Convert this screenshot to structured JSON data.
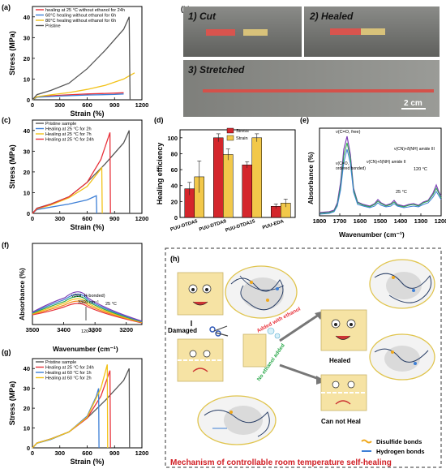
{
  "panels": {
    "a": {
      "tag": "(a)"
    },
    "b": {
      "tag": "(b)",
      "photo1": "1) Cut",
      "photo2": "2) Healed",
      "photo3": "3) Stretched",
      "scale": "2 cm"
    },
    "c": {
      "tag": "(c)"
    },
    "d": {
      "tag": "(d)"
    },
    "e": {
      "tag": "(e)"
    },
    "f": {
      "tag": "(f)"
    },
    "g": {
      "tag": "(g)"
    },
    "h": {
      "tag": "(h)",
      "damaged": "Damaged",
      "added_ethanol": "Added with ethanol",
      "no_ethanol": "No ethanol added",
      "healed": "Healed",
      "can_not_heal": "Can not Heal",
      "legend_disulfide": "Disulfide bonds",
      "legend_hbond": "Hydrogen bonds",
      "title": "Mechanism of controllable room temperature self-healing"
    }
  },
  "colors": {
    "red": "#e8313a",
    "blue": "#3d7fd6",
    "yellow": "#f2c218",
    "gray": "#555555",
    "purple": "#7b3fb5",
    "green": "#2aa84a"
  },
  "chart_data": [
    {
      "id": "a",
      "type": "line",
      "xlabel": "Strain (%)",
      "ylabel": "Stress (MPa)",
      "xlim": [
        0,
        1200
      ],
      "ylim": [
        0,
        45
      ],
      "xticks": [
        0,
        300,
        600,
        900,
        1200
      ],
      "yticks": [
        0,
        10,
        20,
        30,
        40
      ],
      "series": [
        {
          "name": "healing at 25 °C without ethanol for 24h",
          "color": "#e8313a",
          "x": [
            0,
            50,
            300,
            600,
            900,
            1000
          ],
          "y": [
            0,
            1.5,
            2.2,
            2.8,
            3.2,
            3.4
          ]
        },
        {
          "name": "60°C healing without ethanol for 6h",
          "color": "#3d7fd6",
          "x": [
            0,
            50,
            300,
            600,
            900,
            1000
          ],
          "y": [
            0,
            1.2,
            1.8,
            2.3,
            2.6,
            2.8
          ]
        },
        {
          "name": "80°C healing without ethanol for 6h",
          "color": "#f2c218",
          "x": [
            0,
            50,
            200,
            400,
            600,
            800,
            1000,
            1100,
            1120
          ],
          "y": [
            0,
            1.5,
            2.4,
            3.5,
            5.0,
            7.0,
            10.0,
            12.5,
            13
          ]
        },
        {
          "name": "Pristine",
          "color": "#555555",
          "x": [
            0,
            50,
            200,
            400,
            600,
            800,
            1000,
            1060,
            1070
          ],
          "y": [
            0,
            2.5,
            4.5,
            8,
            15,
            24,
            34,
            40,
            0
          ]
        }
      ]
    },
    {
      "id": "c",
      "type": "line",
      "xlabel": "Strain (%)",
      "ylabel": "Stress (MPa)",
      "xlim": [
        0,
        1200
      ],
      "ylim": [
        0,
        45
      ],
      "xticks": [
        0,
        300,
        600,
        900,
        1200
      ],
      "yticks": [
        0,
        10,
        20,
        30,
        40
      ],
      "series": [
        {
          "name": "Pristine sample",
          "color": "#555555",
          "x": [
            0,
            50,
            200,
            400,
            600,
            800,
            1000,
            1060,
            1065
          ],
          "y": [
            0,
            2.5,
            4.5,
            8,
            15,
            24,
            34,
            40,
            0
          ]
        },
        {
          "name": "Healing at 25 °C for 2h",
          "color": "#3d7fd6",
          "x": [
            0,
            50,
            200,
            400,
            600,
            700,
            705
          ],
          "y": [
            0,
            1.8,
            3.0,
            4.5,
            6.5,
            8.5,
            0
          ]
        },
        {
          "name": "Healing at 25 °C for 7h",
          "color": "#f2c218",
          "x": [
            0,
            50,
            200,
            400,
            600,
            760,
            765
          ],
          "y": [
            0,
            2.2,
            4.0,
            7.5,
            13,
            22,
            0
          ]
        },
        {
          "name": "Healing at 25 °C for 24h",
          "color": "#e8313a",
          "x": [
            0,
            50,
            200,
            400,
            600,
            750,
            850,
            855
          ],
          "y": [
            0,
            2.4,
            4.4,
            8,
            15,
            26,
            39,
            0
          ]
        }
      ]
    },
    {
      "id": "d",
      "type": "bar",
      "ylabel": "Healing efficiency",
      "ylim": [
        0,
        110
      ],
      "yticks": [
        0,
        20,
        40,
        60,
        80,
        100
      ],
      "categories": [
        "PUU-DTDA5",
        "PUU-DTDA9",
        "PUU-DTDA15",
        "PUU-EDA"
      ],
      "series": [
        {
          "name": "Stress",
          "color": "#d4262c",
          "values": [
            36,
            100,
            66,
            14
          ],
          "err": [
            8,
            5,
            4,
            3
          ]
        },
        {
          "name": "Strain",
          "color": "#f2c84a",
          "values": [
            51,
            79,
            100,
            18
          ],
          "err": [
            20,
            7,
            5,
            5
          ]
        }
      ]
    },
    {
      "id": "e",
      "type": "line",
      "xlabel": "Wavenumber (cm⁻¹)",
      "ylabel": "Absorbance (%)",
      "xlim": [
        1800,
        1200
      ],
      "xticks": [
        1800,
        1700,
        1600,
        1500,
        1400,
        1300,
        1200
      ],
      "annotations": [
        "ν(C=O, free)",
        "ν(C=O, ordered bonded)",
        "ν(CN)+δ(NH) amide II",
        "ν(CN)+δ(NH) amide III",
        "120 °C",
        "25 °C"
      ]
    },
    {
      "id": "f",
      "type": "line",
      "xlabel": "Wavenumber (cm⁻¹)",
      "ylabel": "Absorbance (%)",
      "xlim": [
        3500,
        3150
      ],
      "xticks": [
        3500,
        3400,
        3300,
        3200
      ],
      "annotations": [
        "ν(NH, H-bonded)",
        "3366 cm⁻¹",
        "25 °C",
        "120 °C"
      ]
    },
    {
      "id": "g",
      "type": "line",
      "xlabel": "Strain (%)",
      "ylabel": "Stress (MPa)",
      "xlim": [
        0,
        1200
      ],
      "ylim": [
        0,
        45
      ],
      "xticks": [
        0,
        300,
        600,
        900,
        1200
      ],
      "yticks": [
        0,
        10,
        20,
        30,
        40
      ],
      "series": [
        {
          "name": "Pristine sample",
          "color": "#555555",
          "x": [
            0,
            50,
            200,
            400,
            600,
            800,
            1000,
            1060,
            1065
          ],
          "y": [
            0,
            2.5,
            4.5,
            8,
            15,
            24,
            34,
            40,
            0
          ]
        },
        {
          "name": "Healing at 25 °C for 24h",
          "color": "#e8313a",
          "x": [
            0,
            50,
            200,
            400,
            600,
            750,
            850,
            855
          ],
          "y": [
            0,
            2.4,
            4.4,
            8,
            15,
            26,
            39,
            0
          ]
        },
        {
          "name": "Healing at 60 °C for 1h",
          "color": "#3d7fd6",
          "x": [
            0,
            50,
            200,
            400,
            600,
            700,
            725,
            730
          ],
          "y": [
            0,
            2.3,
            4.2,
            8,
            16,
            26,
            30,
            0
          ]
        },
        {
          "name": "Healing at 60 °C for 2h",
          "color": "#f2c218",
          "x": [
            0,
            50,
            200,
            400,
            600,
            750,
            820,
            825
          ],
          "y": [
            0,
            2.4,
            4.4,
            8,
            15.5,
            30,
            42,
            0
          ]
        }
      ]
    }
  ]
}
